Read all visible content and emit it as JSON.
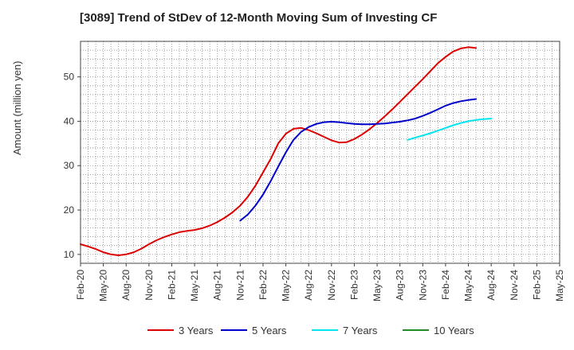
{
  "chart_data": {
    "type": "line",
    "title": "[3089]  Trend of StDev of 12-Month Moving Sum of Investing CF",
    "xlabel": "",
    "ylabel": "Amount (million yen)",
    "ylim": [
      8,
      58
    ],
    "yticks": [
      10,
      20,
      30,
      40,
      50
    ],
    "x_tick_labels": [
      "Feb-20",
      "May-20",
      "Aug-20",
      "Nov-20",
      "Feb-21",
      "May-21",
      "Aug-21",
      "Nov-21",
      "Feb-22",
      "May-22",
      "Aug-22",
      "Nov-22",
      "Feb-23",
      "May-23",
      "Aug-23",
      "Nov-23",
      "Feb-24",
      "May-24",
      "Aug-24",
      "Nov-24",
      "Feb-25",
      "May-25"
    ],
    "x_range_months": [
      0,
      63
    ],
    "grid": true,
    "legend_position": "bottom",
    "series": [
      {
        "name": "3 Years",
        "color": "#dd0000",
        "points": [
          [
            0,
            12.3
          ],
          [
            1,
            11.8
          ],
          [
            2,
            11.2
          ],
          [
            3,
            10.5
          ],
          [
            4,
            10.0
          ],
          [
            5,
            9.8
          ],
          [
            6,
            10.0
          ],
          [
            7,
            10.5
          ],
          [
            8,
            11.3
          ],
          [
            9,
            12.3
          ],
          [
            10,
            13.2
          ],
          [
            11,
            13.9
          ],
          [
            12,
            14.5
          ],
          [
            13,
            15.0
          ],
          [
            14,
            15.3
          ],
          [
            15,
            15.5
          ],
          [
            16,
            15.9
          ],
          [
            17,
            16.5
          ],
          [
            18,
            17.3
          ],
          [
            19,
            18.3
          ],
          [
            20,
            19.5
          ],
          [
            21,
            21.0
          ],
          [
            22,
            23.0
          ],
          [
            23,
            25.5
          ],
          [
            24,
            28.5
          ],
          [
            25,
            31.5
          ],
          [
            26,
            35.0
          ],
          [
            27,
            37.2
          ],
          [
            28,
            38.3
          ],
          [
            29,
            38.5
          ],
          [
            30,
            38.0
          ],
          [
            31,
            37.3
          ],
          [
            32,
            36.5
          ],
          [
            33,
            35.7
          ],
          [
            34,
            35.2
          ],
          [
            35,
            35.3
          ],
          [
            36,
            36.0
          ],
          [
            37,
            37.0
          ],
          [
            38,
            38.2
          ],
          [
            39,
            39.6
          ],
          [
            40,
            41.1
          ],
          [
            41,
            42.7
          ],
          [
            42,
            44.4
          ],
          [
            43,
            46.1
          ],
          [
            44,
            47.8
          ],
          [
            45,
            49.5
          ],
          [
            46,
            51.3
          ],
          [
            47,
            53.1
          ],
          [
            48,
            54.5
          ],
          [
            49,
            55.7
          ],
          [
            50,
            56.4
          ],
          [
            51,
            56.7
          ],
          [
            52,
            56.5
          ]
        ]
      },
      {
        "name": "5 Years",
        "color": "#0000cc",
        "points": [
          [
            21,
            17.6
          ],
          [
            22,
            19.0
          ],
          [
            23,
            21.0
          ],
          [
            24,
            23.5
          ],
          [
            25,
            26.5
          ],
          [
            26,
            29.8
          ],
          [
            27,
            33.0
          ],
          [
            28,
            35.8
          ],
          [
            29,
            37.6
          ],
          [
            30,
            38.7
          ],
          [
            31,
            39.4
          ],
          [
            32,
            39.8
          ],
          [
            33,
            39.9
          ],
          [
            34,
            39.8
          ],
          [
            35,
            39.6
          ],
          [
            36,
            39.4
          ],
          [
            37,
            39.3
          ],
          [
            38,
            39.3
          ],
          [
            39,
            39.4
          ],
          [
            40,
            39.5
          ],
          [
            41,
            39.7
          ],
          [
            42,
            39.9
          ],
          [
            43,
            40.2
          ],
          [
            44,
            40.6
          ],
          [
            45,
            41.2
          ],
          [
            46,
            41.9
          ],
          [
            47,
            42.7
          ],
          [
            48,
            43.5
          ],
          [
            49,
            44.1
          ],
          [
            50,
            44.5
          ],
          [
            51,
            44.8
          ],
          [
            52,
            45.0
          ]
        ]
      },
      {
        "name": "7 Years",
        "color": "#00e5ee",
        "points": [
          [
            43,
            35.8
          ],
          [
            44,
            36.3
          ],
          [
            45,
            36.8
          ],
          [
            46,
            37.3
          ],
          [
            47,
            37.9
          ],
          [
            48,
            38.5
          ],
          [
            49,
            39.1
          ],
          [
            50,
            39.6
          ],
          [
            51,
            40.0
          ],
          [
            52,
            40.3
          ],
          [
            53,
            40.5
          ],
          [
            54,
            40.6
          ]
        ]
      },
      {
        "name": "10 Years",
        "color": "#228b22",
        "points": []
      }
    ]
  }
}
